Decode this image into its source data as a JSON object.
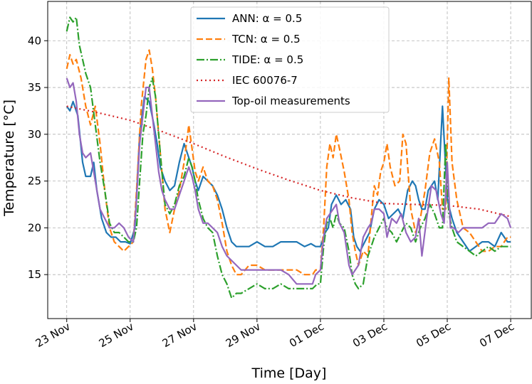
{
  "chart_data": {
    "type": "line",
    "title": "",
    "xlabel": "Time [Day]",
    "ylabel": "Temperature [°C]",
    "x_unit": "days since 23 Nov",
    "xlim": [
      -0.6,
      14.65
    ],
    "ylim": [
      10.3,
      44.2
    ],
    "xticks": [
      {
        "value": 0,
        "label": "23 Nov"
      },
      {
        "value": 2,
        "label": "25 Nov"
      },
      {
        "value": 4,
        "label": "27 Nov"
      },
      {
        "value": 6,
        "label": "29 Nov"
      },
      {
        "value": 8,
        "label": "01 Dec"
      },
      {
        "value": 10,
        "label": "03 Dec"
      },
      {
        "value": 12,
        "label": "05 Dec"
      },
      {
        "value": 14,
        "label": "07 Dec"
      }
    ],
    "yticks": [
      15,
      20,
      25,
      30,
      35,
      40
    ],
    "grid": true,
    "legend_position": "top-center",
    "series": [
      {
        "name": "ANN: α = 0.5",
        "color": "#1f77b4",
        "dash": "",
        "x": [
          0,
          0.1,
          0.2,
          0.35,
          0.5,
          0.6,
          0.75,
          0.85,
          0.95,
          1.1,
          1.25,
          1.4,
          1.55,
          1.7,
          1.85,
          2.0,
          2.15,
          2.3,
          2.45,
          2.6,
          2.75,
          2.85,
          2.95,
          3.1,
          3.25,
          3.4,
          3.55,
          3.7,
          3.85,
          3.95,
          4.05,
          4.15,
          4.3,
          4.45,
          4.6,
          4.75,
          4.9,
          5.05,
          5.2,
          5.35,
          5.5,
          5.75,
          6.0,
          6.25,
          6.5,
          6.75,
          7.0,
          7.25,
          7.5,
          7.7,
          7.85,
          8.0,
          8.15,
          8.25,
          8.35,
          8.5,
          8.65,
          8.8,
          8.95,
          9.05,
          9.15,
          9.25,
          9.4,
          9.55,
          9.7,
          9.85,
          10.0,
          10.15,
          10.3,
          10.45,
          10.6,
          10.75,
          10.9,
          11.0,
          11.1,
          11.2,
          11.3,
          11.4,
          11.5,
          11.6,
          11.7,
          11.85,
          12.0,
          12.15,
          12.3,
          12.5,
          12.7,
          12.9,
          13.1,
          13.3,
          13.5,
          13.7,
          13.9,
          14.0
        ],
        "y": [
          33,
          32.5,
          33.5,
          32,
          27,
          25.5,
          25.5,
          27,
          24,
          21,
          19.5,
          19,
          19,
          18.5,
          18.5,
          18.3,
          20,
          30,
          34,
          33.5,
          31,
          29,
          26.5,
          25,
          24,
          24.5,
          27,
          29,
          27.5,
          26.5,
          25,
          24,
          25.5,
          25,
          24.5,
          23.5,
          22,
          20,
          18.5,
          18,
          18,
          18,
          18.5,
          18,
          18,
          18.5,
          18.5,
          18.5,
          18,
          18.3,
          18,
          18,
          19.5,
          20,
          22.5,
          23.5,
          22.5,
          23,
          22,
          19,
          18,
          17.5,
          18.5,
          19.5,
          22,
          23,
          22.5,
          21,
          21.5,
          22,
          21,
          24,
          25,
          24.5,
          23,
          22,
          22,
          24,
          24.5,
          25,
          23,
          33,
          23,
          21,
          19.5,
          18.5,
          17.5,
          18,
          18.5,
          18.5,
          18,
          19.5,
          18.5,
          18.5
        ]
      },
      {
        "name": "TCN: α = 0.5",
        "color": "#ff7f0e",
        "dash": "9,4",
        "x": [
          0,
          0.1,
          0.2,
          0.3,
          0.45,
          0.6,
          0.75,
          0.9,
          1.05,
          1.2,
          1.35,
          1.5,
          1.65,
          1.8,
          1.95,
          2.1,
          2.2,
          2.35,
          2.5,
          2.6,
          2.7,
          2.8,
          2.9,
          3.0,
          3.1,
          3.25,
          3.4,
          3.55,
          3.7,
          3.85,
          3.95,
          4.05,
          4.15,
          4.3,
          4.45,
          4.6,
          4.75,
          4.9,
          5.05,
          5.2,
          5.35,
          5.5,
          5.75,
          6.0,
          6.25,
          6.5,
          6.75,
          7.0,
          7.25,
          7.5,
          7.75,
          7.85,
          8.0,
          8.1,
          8.2,
          8.3,
          8.4,
          8.5,
          8.6,
          8.75,
          8.9,
          9.0,
          9.1,
          9.2,
          9.35,
          9.5,
          9.6,
          9.7,
          9.8,
          9.9,
          10.0,
          10.1,
          10.2,
          10.35,
          10.5,
          10.6,
          10.7,
          10.85,
          11.0,
          11.15,
          11.3,
          11.45,
          11.6,
          11.75,
          11.85,
          11.95,
          12.05,
          12.15,
          12.3,
          12.5,
          12.7,
          12.9,
          13.1,
          13.3,
          13.5,
          13.7,
          13.9,
          14.0
        ],
        "y": [
          37,
          38.5,
          37.5,
          38,
          36,
          33,
          31,
          33,
          29,
          24,
          20,
          18.5,
          18,
          17.5,
          18,
          18.5,
          24,
          33,
          38,
          39,
          37,
          34,
          30,
          26,
          22,
          19.5,
          22,
          24,
          27,
          31,
          28.5,
          26,
          25,
          26.5,
          25,
          24.5,
          23,
          20.5,
          17.5,
          16,
          15,
          15,
          16,
          16,
          15.5,
          15.5,
          15.5,
          15.5,
          15.5,
          15,
          15,
          15.5,
          15.5,
          20,
          26.5,
          29,
          27.5,
          30,
          28.5,
          26,
          23,
          19.5,
          17.5,
          16,
          17.5,
          17,
          21,
          24.5,
          23.5,
          26,
          27,
          29,
          26.5,
          24.5,
          25,
          30,
          29,
          22,
          19.5,
          21,
          24,
          28,
          29.5,
          27,
          22,
          22,
          36,
          27,
          23,
          20,
          19.5,
          18.5,
          17.5,
          17.5,
          18,
          18,
          19,
          19
        ]
      },
      {
        "name": "TIDE: α = 0.5",
        "color": "#2ca02c",
        "dash": "11,3,2,3",
        "x": [
          0,
          0.1,
          0.2,
          0.3,
          0.4,
          0.5,
          0.6,
          0.75,
          0.9,
          1.05,
          1.2,
          1.35,
          1.5,
          1.65,
          1.8,
          1.95,
          2.1,
          2.2,
          2.3,
          2.4,
          2.5,
          2.6,
          2.7,
          2.8,
          2.9,
          3.0,
          3.1,
          3.25,
          3.4,
          3.55,
          3.7,
          3.85,
          3.95,
          4.05,
          4.15,
          4.3,
          4.45,
          4.6,
          4.75,
          4.9,
          5.05,
          5.2,
          5.35,
          5.5,
          5.75,
          6.0,
          6.25,
          6.5,
          6.75,
          7.0,
          7.25,
          7.5,
          7.75,
          7.9,
          8.0,
          8.1,
          8.2,
          8.3,
          8.4,
          8.5,
          8.6,
          8.75,
          8.9,
          9.0,
          9.1,
          9.2,
          9.35,
          9.5,
          9.6,
          9.7,
          9.85,
          10.0,
          10.1,
          10.25,
          10.4,
          10.55,
          10.7,
          10.85,
          11.0,
          11.15,
          11.3,
          11.45,
          11.6,
          11.75,
          11.85,
          11.95,
          12.05,
          12.15,
          12.3,
          12.5,
          12.7,
          12.9,
          13.1,
          13.3,
          13.5,
          13.7,
          13.9,
          14.0
        ],
        "y": [
          41,
          42.5,
          42,
          42.5,
          39.5,
          38,
          36.5,
          35,
          31,
          27,
          24,
          20.5,
          19.5,
          19.5,
          19,
          18.5,
          18.5,
          20,
          25,
          30,
          32,
          35,
          36,
          34,
          30,
          26,
          22.5,
          21.5,
          22.5,
          24.5,
          25.5,
          27.5,
          26.5,
          25,
          23,
          21,
          20,
          19.5,
          17,
          15,
          14,
          12.5,
          13,
          13,
          13.5,
          14,
          13.5,
          13.5,
          14,
          13.5,
          13.5,
          13.5,
          13.5,
          14,
          14,
          18,
          20.5,
          21,
          20,
          21.5,
          20.5,
          20,
          17.5,
          15,
          14,
          13.5,
          14,
          17,
          18,
          19,
          20,
          21,
          20,
          19.5,
          18.5,
          19.5,
          20.5,
          20,
          18.5,
          20,
          21,
          22.5,
          21.5,
          20,
          20,
          29,
          21.5,
          20,
          18.5,
          18,
          17.5,
          17,
          17.5,
          18,
          17.5,
          18,
          18,
          18
        ]
      },
      {
        "name": "IEC 60076-7",
        "color": "#d62728",
        "dash": "2,4",
        "x": [
          0,
          1,
          2,
          3,
          4,
          5,
          6,
          7,
          8,
          9,
          10,
          11,
          12,
          13,
          14
        ],
        "y": [
          33,
          32.3,
          31.5,
          30.3,
          29,
          27.6,
          26.3,
          25.1,
          24,
          23.2,
          22.6,
          22.5,
          22.4,
          22.0,
          21.2
        ]
      },
      {
        "name": "Top-oil measurements",
        "color": "#9467bd",
        "dash": "",
        "x": [
          0,
          0.1,
          0.2,
          0.3,
          0.4,
          0.5,
          0.6,
          0.75,
          0.9,
          1.05,
          1.2,
          1.35,
          1.5,
          1.65,
          1.8,
          1.95,
          2.1,
          2.2,
          2.3,
          2.4,
          2.5,
          2.6,
          2.7,
          2.8,
          2.9,
          3.0,
          3.1,
          3.25,
          3.4,
          3.55,
          3.7,
          3.85,
          3.95,
          4.05,
          4.15,
          4.3,
          4.45,
          4.6,
          4.75,
          4.9,
          5.05,
          5.2,
          5.35,
          5.5,
          5.75,
          6.0,
          6.25,
          6.5,
          6.75,
          7.0,
          7.25,
          7.5,
          7.75,
          7.85,
          8.0,
          8.1,
          8.2,
          8.3,
          8.4,
          8.5,
          8.6,
          8.75,
          8.9,
          9.0,
          9.1,
          9.2,
          9.35,
          9.5,
          9.6,
          9.7,
          9.85,
          10.0,
          10.1,
          10.25,
          10.4,
          10.55,
          10.7,
          10.85,
          11.0,
          11.1,
          11.2,
          11.35,
          11.5,
          11.65,
          11.8,
          11.9,
          12.0,
          12.1,
          12.2,
          12.35,
          12.5,
          12.7,
          12.9,
          13.1,
          13.3,
          13.5,
          13.7,
          13.9,
          14.0
        ],
        "y": [
          36,
          35,
          35.5,
          33.5,
          30,
          28,
          27.5,
          28,
          25,
          22,
          21,
          20,
          20,
          20.5,
          20,
          19,
          18.5,
          23,
          29,
          32,
          35,
          35,
          32,
          29,
          26,
          24,
          23,
          22,
          22,
          23.5,
          25,
          26.5,
          25.5,
          24,
          22,
          20.5,
          20.5,
          20,
          19.5,
          18,
          17,
          16.5,
          16,
          15.5,
          15.5,
          15.5,
          15.5,
          15.5,
          15.5,
          15,
          14,
          14,
          14,
          15,
          15.5,
          19,
          21,
          21.5,
          22,
          22.5,
          20.5,
          19.5,
          16,
          15,
          15.5,
          16,
          19,
          20,
          20.5,
          22,
          22,
          21.5,
          19,
          21,
          20.5,
          21.5,
          19.5,
          18.5,
          19,
          21,
          17,
          21,
          24.5,
          24,
          21.5,
          20.5,
          27,
          20,
          20,
          19.5,
          20,
          20,
          20,
          20,
          20.5,
          20.5,
          21.5,
          21,
          20
        ]
      }
    ]
  }
}
